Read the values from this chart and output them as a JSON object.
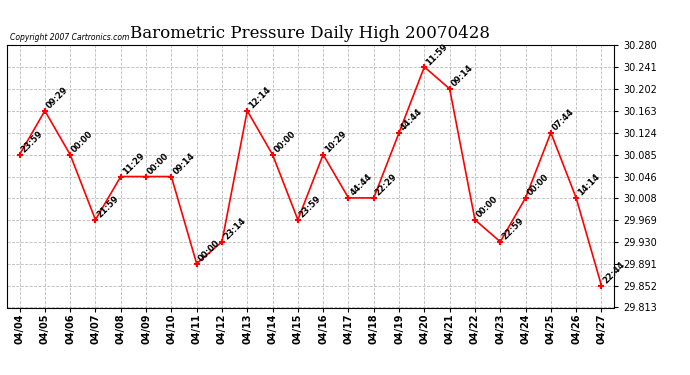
{
  "title": "Barometric Pressure Daily High 20070428",
  "copyright": "Copyright 2007 Cartronics.com",
  "dates": [
    "04/04",
    "04/05",
    "04/06",
    "04/07",
    "04/08",
    "04/09",
    "04/10",
    "04/11",
    "04/12",
    "04/13",
    "04/14",
    "04/15",
    "04/16",
    "04/17",
    "04/18",
    "04/19",
    "04/20",
    "04/21",
    "04/22",
    "04/23",
    "04/24",
    "04/25",
    "04/26",
    "04/27"
  ],
  "values": [
    30.085,
    30.163,
    30.085,
    29.969,
    30.046,
    30.046,
    30.046,
    29.891,
    29.93,
    30.163,
    30.085,
    29.969,
    30.085,
    30.008,
    30.008,
    30.124,
    30.241,
    30.202,
    29.969,
    29.93,
    30.008,
    30.124,
    30.008,
    29.852
  ],
  "time_labels": [
    "23:59",
    "09:29",
    "00:00",
    "21:59",
    "11:29",
    "00:00",
    "09:14",
    "00:00",
    "23:14",
    "12:14",
    "00:00",
    "23:59",
    "10:29",
    "44:44",
    "22:29",
    "44:44",
    "11:59",
    "09:14",
    "00:00",
    "22:59",
    "00:00",
    "07:44",
    "14:14",
    "22:44"
  ],
  "ylim_min": 29.813,
  "ylim_max": 30.28,
  "yticks": [
    29.813,
    29.852,
    29.891,
    29.93,
    29.969,
    30.008,
    30.046,
    30.085,
    30.124,
    30.163,
    30.202,
    30.241,
    30.28
  ],
  "line_color": "#ff0000",
  "marker_color": "#ff0000",
  "bg_color": "#ffffff",
  "grid_color": "#bbbbbb",
  "title_fontsize": 12,
  "tick_fontsize": 7,
  "label_fontsize": 6.5
}
